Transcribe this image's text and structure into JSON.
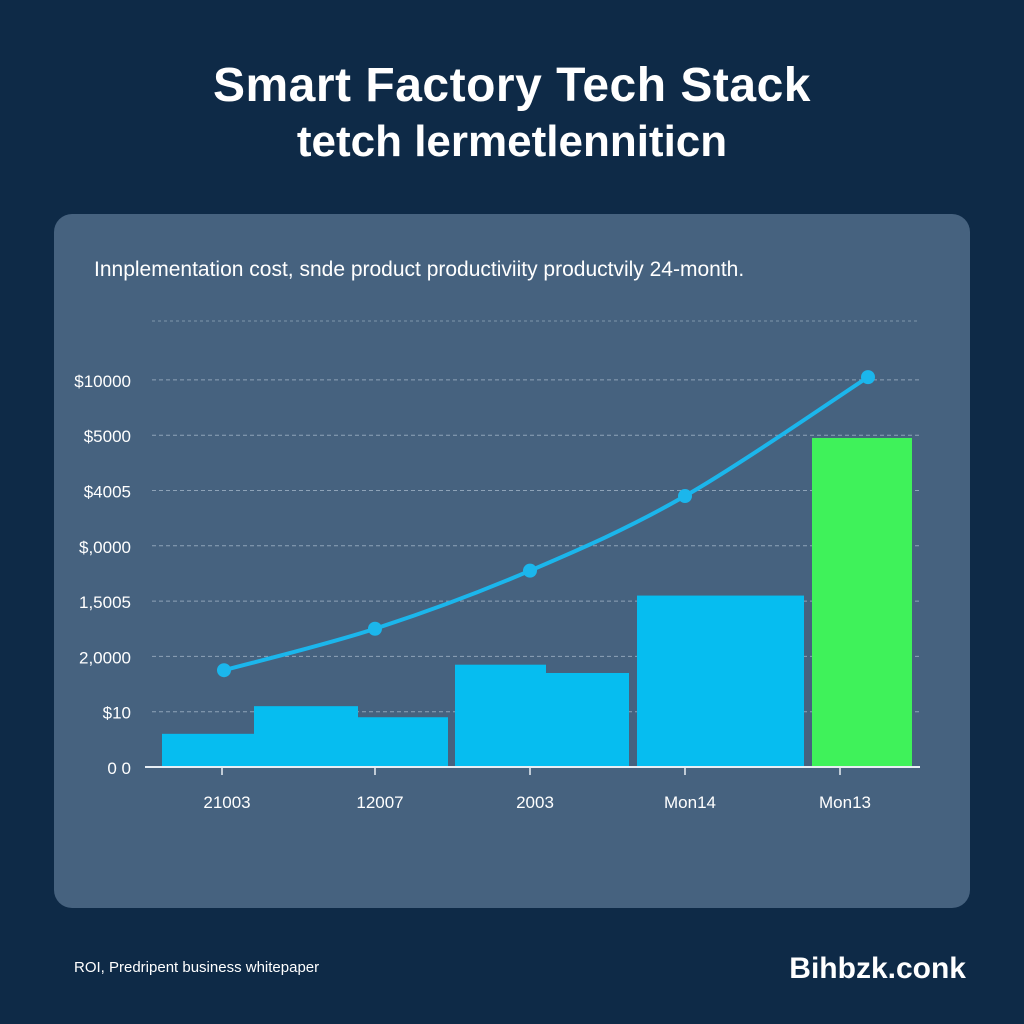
{
  "header": {
    "title": "Smart Factory Tech Stack",
    "subtitle": "tetch lermetlenniticn"
  },
  "card": {
    "caption": "Innplementation cost, snde product productiviity productvily 24-month."
  },
  "footer": {
    "left": "ROI, Predripent business whitepaper",
    "brand": "Bihbzk.conk"
  },
  "chart_data": {
    "type": "bar",
    "title": "",
    "xlabel": "",
    "ylabel": "",
    "y_tick_labels": [
      "0 0",
      "$10",
      "2,0000",
      "1,5005",
      "$,0000",
      "$4005",
      "$5000",
      "$10000"
    ],
    "categories": [
      "21003",
      "12007",
      "2003",
      "Mon14",
      "Mon13"
    ],
    "bar_groups": [
      {
        "category": "21003",
        "bars": [
          0.6,
          1.1
        ]
      },
      {
        "category": "12007",
        "bars": [
          0.9
        ]
      },
      {
        "category": "2003",
        "bars": [
          1.85,
          1.7
        ]
      },
      {
        "category": "Mon14",
        "bars": [
          3.1
        ]
      },
      {
        "category": "Mon13",
        "bars": [
          5.95
        ],
        "highlight": true
      }
    ],
    "line_series": {
      "points": [
        {
          "x": "21003",
          "y": 1.75
        },
        {
          "x": "12007",
          "y": 2.5
        },
        {
          "x": "2003",
          "y": 3.55
        },
        {
          "x": "Mon14",
          "y": 4.9
        },
        {
          "x": "Mon13",
          "y": 7.05
        }
      ]
    },
    "ylim": [
      0,
      7
    ],
    "grid": true,
    "colors": {
      "bar": "#06bdf0",
      "highlight_bar": "#3ff25a",
      "line": "#1bb6ec",
      "grid": "#8ea3b8",
      "axis": "#e8eef4"
    }
  }
}
